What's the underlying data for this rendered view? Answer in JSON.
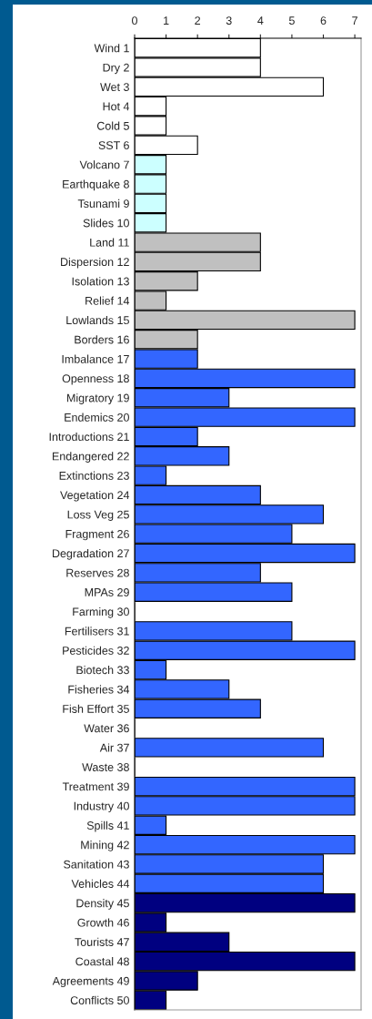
{
  "chart_data": {
    "type": "bar",
    "orientation": "horizontal",
    "categories": [
      "Wind 1",
      "Dry 2",
      "Wet 3",
      "Hot 4",
      "Cold 5",
      "SST 6",
      "Volcano 7",
      "Earthquake 8",
      "Tsunami 9",
      "Slides 10",
      "Land 11",
      "Dispersion 12",
      "Isolation 13",
      "Relief 14",
      "Lowlands 15",
      "Borders 16",
      "Imbalance 17",
      "Openness 18",
      "Migratory 19",
      "Endemics 20",
      "Introductions 21",
      "Endangered 22",
      "Extinctions 23",
      "Vegetation 24",
      "Loss Veg 25",
      "Fragment 26",
      "Degradation 27",
      "Reserves 28",
      "MPAs 29",
      "Farming 30",
      "Fertilisers 31",
      "Pesticides 32",
      "Biotech 33",
      "Fisheries 34",
      "Fish Effort 35",
      "Water 36",
      "Air 37",
      "Waste 38",
      "Treatment 39",
      "Industry 40",
      "Spills 41",
      "Mining 42",
      "Sanitation 43",
      "Vehicles 44",
      "Density 45",
      "Growth 46",
      "Tourists 47",
      "Coastal 48",
      "Agreements 49",
      "Conflicts 50"
    ],
    "values": [
      4,
      4,
      6,
      1,
      1,
      2,
      1,
      1,
      1,
      1,
      4,
      4,
      2,
      1,
      7,
      2,
      2,
      7,
      3,
      7,
      2,
      3,
      1,
      4,
      6,
      5,
      7,
      4,
      5,
      0,
      5,
      7,
      1,
      3,
      4,
      0,
      6,
      0,
      7,
      7,
      1,
      7,
      6,
      6,
      7,
      1,
      3,
      7,
      2,
      1
    ],
    "colors": [
      "#ffffff",
      "#ffffff",
      "#ffffff",
      "#ffffff",
      "#ffffff",
      "#ffffff",
      "#ccffff",
      "#ccffff",
      "#ccffff",
      "#ccffff",
      "#c0c0c0",
      "#c0c0c0",
      "#c0c0c0",
      "#c0c0c0",
      "#c0c0c0",
      "#c0c0c0",
      "#3366ff",
      "#3366ff",
      "#3366ff",
      "#3366ff",
      "#3366ff",
      "#3366ff",
      "#3366ff",
      "#3366ff",
      "#3366ff",
      "#3366ff",
      "#3366ff",
      "#3366ff",
      "#3366ff",
      "#3366ff",
      "#3366ff",
      "#3366ff",
      "#3366ff",
      "#3366ff",
      "#3366ff",
      "#3366ff",
      "#3366ff",
      "#3366ff",
      "#3366ff",
      "#3366ff",
      "#3366ff",
      "#3366ff",
      "#3366ff",
      "#3366ff",
      "#000080",
      "#000080",
      "#000080",
      "#000080",
      "#000080",
      "#000080"
    ],
    "xlim": [
      0,
      7.2
    ],
    "xticks": [
      0,
      1,
      2,
      3,
      4,
      5,
      6,
      7
    ],
    "grid": false,
    "legend": false
  }
}
